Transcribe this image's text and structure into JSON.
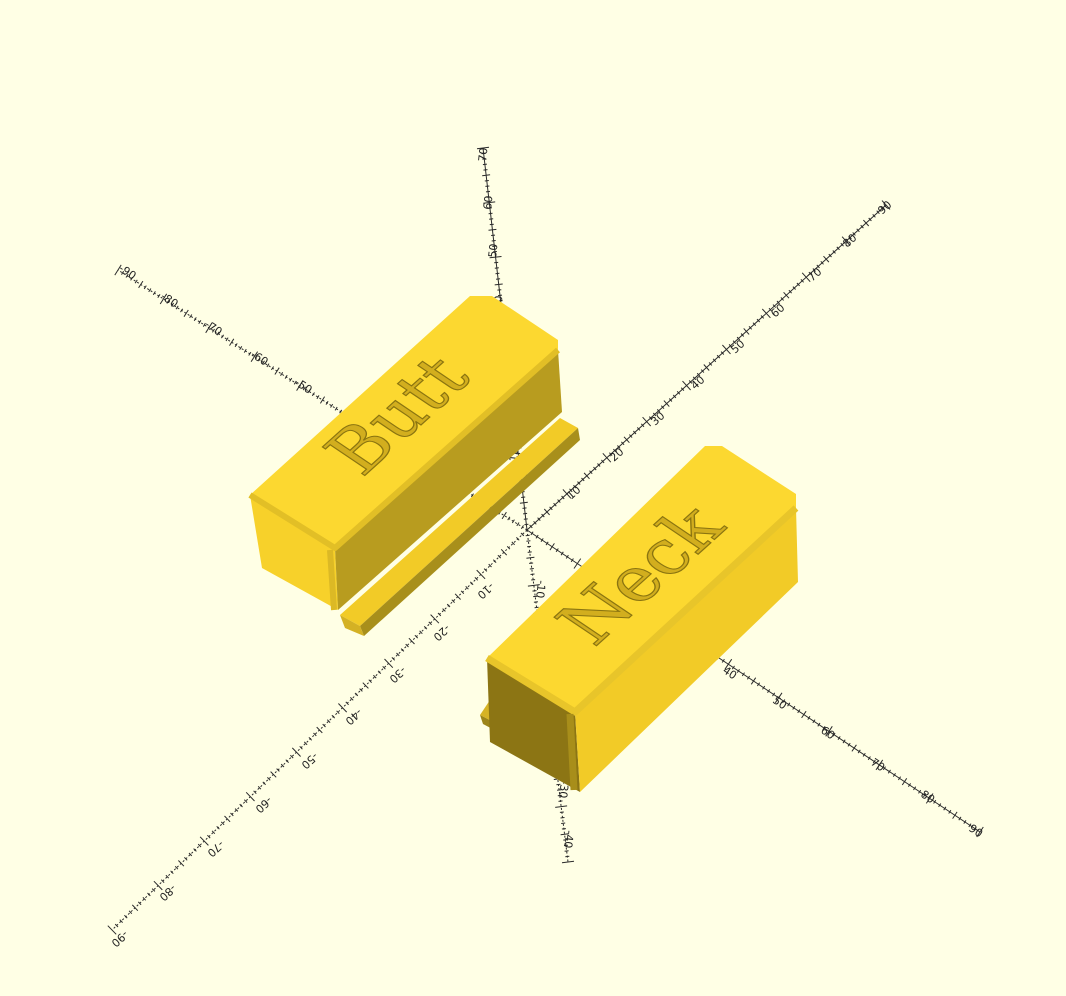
{
  "viewport": {
    "background": "#ffffe5",
    "model_color_top": "#fcd830",
    "model_color_front": "#f7d12a",
    "model_color_side": "#b99d20",
    "model_color_shadow": "#8c7514"
  },
  "parts": [
    {
      "label": "Butt"
    },
    {
      "label": "Neck"
    }
  ],
  "axes": {
    "x_positive_labels": [
      "10",
      "20",
      "30",
      "40",
      "50",
      "60",
      "70",
      "80",
      "90"
    ],
    "x_negative_labels": [
      "-10",
      "-20",
      "-30",
      "-40",
      "-50",
      "-60",
      "-70",
      "-80",
      "-90"
    ],
    "y_positive_labels": [
      "10",
      "20",
      "30",
      "40",
      "50",
      "60",
      "70",
      "80",
      "90"
    ],
    "y_negative_labels": [
      "-10",
      "-20",
      "-30",
      "-40",
      "-50",
      "-60",
      "-70",
      "-80",
      "-90"
    ],
    "z_positive_labels": [
      "10",
      "20",
      "30",
      "40",
      "50",
      "60",
      "70"
    ],
    "z_negative_labels": [
      "-10",
      "-20",
      "-30",
      "-40"
    ]
  }
}
